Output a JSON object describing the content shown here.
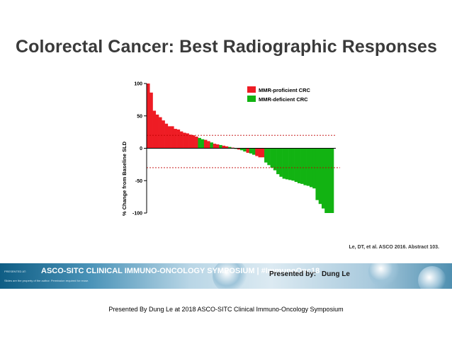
{
  "slide": {
    "title": "Colorectal Cancer:  Best Radiographic Responses",
    "citation": "Le, DT, et al. ASCO 2016. Abstract 103."
  },
  "colors": {
    "proficient": "#ee1c24",
    "deficient": "#12b312",
    "reference_line": "#c00000"
  },
  "chart_data": {
    "type": "bar",
    "title": "",
    "xlabel": "",
    "ylabel": "% Change from Baseline SLD",
    "ylim": [
      -100,
      100
    ],
    "yticks": [
      100,
      50,
      0,
      -50,
      -100
    ],
    "grid": false,
    "legend_position": "top-right",
    "reference_lines": [
      20,
      -30
    ],
    "series": [
      {
        "name": "MMR-proficient CRC",
        "color": "#ee1c24"
      },
      {
        "name": "MMR-deficient CRC",
        "color": "#12b312"
      }
    ],
    "bars": [
      {
        "value": 100,
        "group": 0
      },
      {
        "value": 86,
        "group": 0
      },
      {
        "value": 58,
        "group": 0
      },
      {
        "value": 52,
        "group": 0
      },
      {
        "value": 48,
        "group": 0
      },
      {
        "value": 43,
        "group": 0
      },
      {
        "value": 38,
        "group": 0
      },
      {
        "value": 34,
        "group": 0
      },
      {
        "value": 34,
        "group": 0
      },
      {
        "value": 30,
        "group": 0
      },
      {
        "value": 29,
        "group": 0
      },
      {
        "value": 26,
        "group": 0
      },
      {
        "value": 24,
        "group": 0
      },
      {
        "value": 23,
        "group": 0
      },
      {
        "value": 21,
        "group": 0
      },
      {
        "value": 20,
        "group": 0
      },
      {
        "value": 18,
        "group": 0
      },
      {
        "value": 16,
        "group": 1
      },
      {
        "value": 14,
        "group": 1
      },
      {
        "value": 13,
        "group": 0
      },
      {
        "value": 11,
        "group": 0
      },
      {
        "value": 9,
        "group": 1
      },
      {
        "value": 7,
        "group": 0
      },
      {
        "value": 6,
        "group": 0
      },
      {
        "value": 5,
        "group": 1
      },
      {
        "value": 4,
        "group": 0
      },
      {
        "value": 3,
        "group": 0
      },
      {
        "value": 2,
        "group": 1
      },
      {
        "value": 1,
        "group": 0
      },
      {
        "value": -1,
        "group": 1
      },
      {
        "value": -2,
        "group": 0
      },
      {
        "value": -3,
        "group": 1
      },
      {
        "value": -5,
        "group": 1
      },
      {
        "value": -7,
        "group": 0
      },
      {
        "value": -8,
        "group": 1
      },
      {
        "value": -10,
        "group": 1
      },
      {
        "value": -12,
        "group": 0
      },
      {
        "value": -14,
        "group": 0
      },
      {
        "value": -14,
        "group": 0
      },
      {
        "value": -22,
        "group": 1
      },
      {
        "value": -26,
        "group": 1
      },
      {
        "value": -30,
        "group": 1
      },
      {
        "value": -34,
        "group": 1
      },
      {
        "value": -40,
        "group": 1
      },
      {
        "value": -44,
        "group": 1
      },
      {
        "value": -47,
        "group": 1
      },
      {
        "value": -48,
        "group": 1
      },
      {
        "value": -49,
        "group": 1
      },
      {
        "value": -50,
        "group": 1
      },
      {
        "value": -52,
        "group": 1
      },
      {
        "value": -54,
        "group": 1
      },
      {
        "value": -55,
        "group": 1
      },
      {
        "value": -57,
        "group": 1
      },
      {
        "value": -58,
        "group": 1
      },
      {
        "value": -60,
        "group": 1
      },
      {
        "value": -62,
        "group": 1
      },
      {
        "value": -80,
        "group": 1
      },
      {
        "value": -86,
        "group": 1
      },
      {
        "value": -93,
        "group": 1
      },
      {
        "value": -100,
        "group": 1
      },
      {
        "value": -100,
        "group": 1
      },
      {
        "value": -100,
        "group": 1
      }
    ]
  },
  "banner": {
    "presented_at": "PRESENTED AT:",
    "symposium": "ASCO-SITC CLINICAL IMMUNO-ONCOLOGY SYMPOSIUM | #ImmunoOnc18",
    "note": "Slides are the property of the author. Permission required for reuse.",
    "presenter_label": "Presented by:",
    "presenter_name": "Dung Le"
  },
  "footer": {
    "credit": "Presented By Dung Le at 2018 ASCO-SITC Clinical Immuno-Oncology Symposium"
  }
}
